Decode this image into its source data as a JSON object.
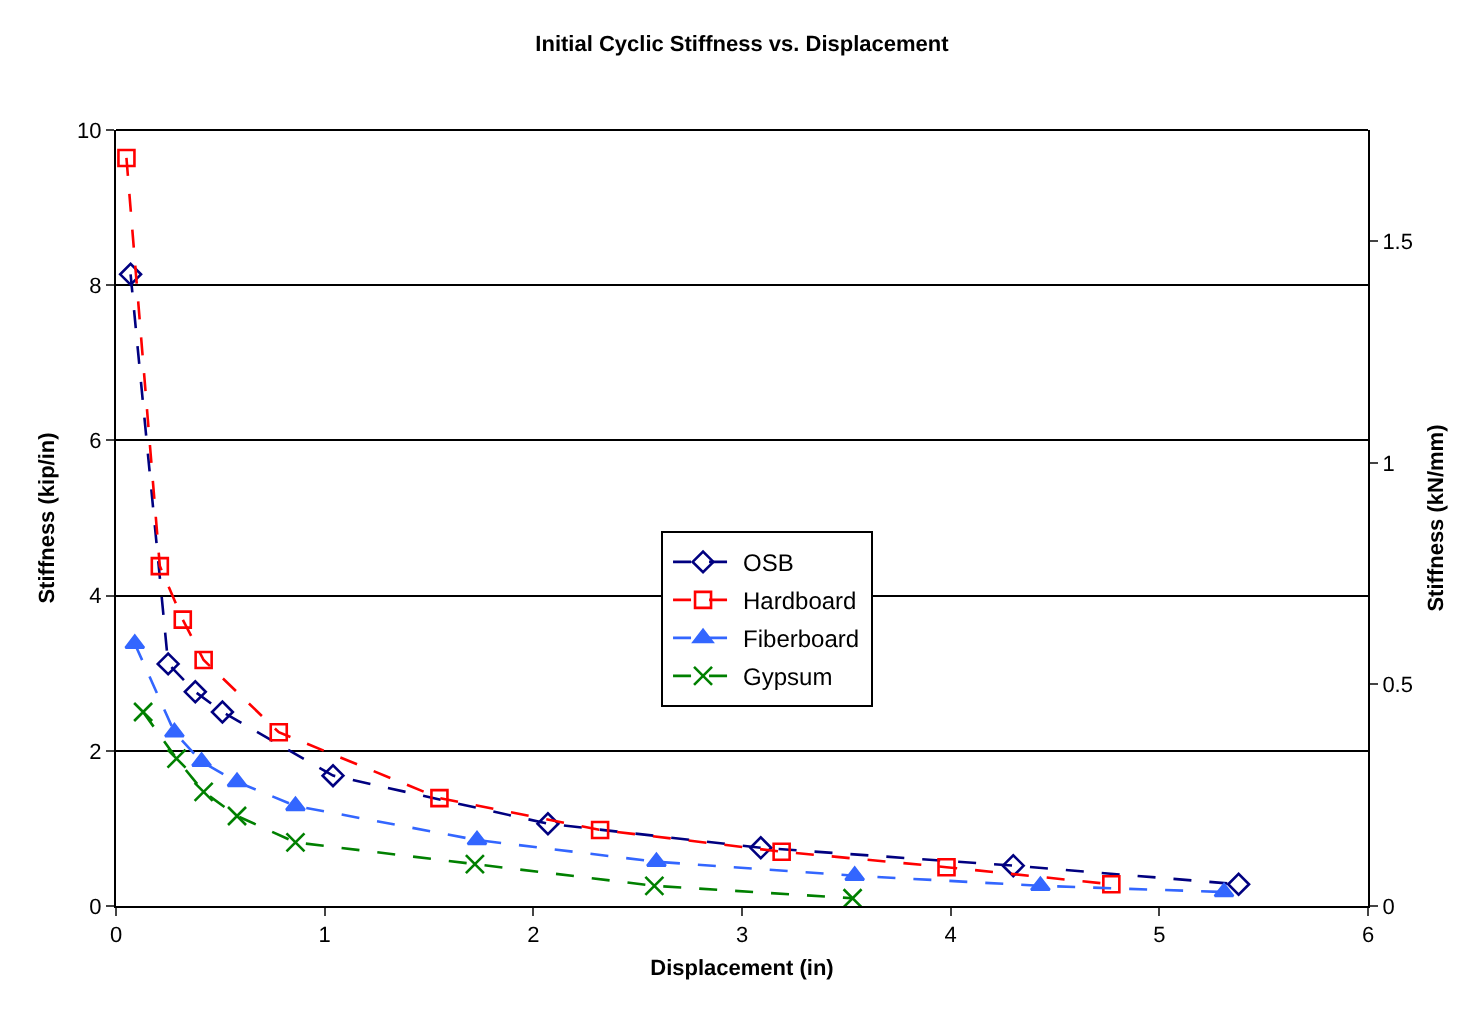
{
  "chart_data": {
    "type": "line",
    "title": "Initial Cyclic Stiffness vs. Displacement",
    "xlabel": "Displacement (in)",
    "ylabel": "Stiffness (kip/in)",
    "y2label": "Stiffness (kN/mm)",
    "xlim": [
      0,
      6
    ],
    "xticks": [
      0,
      1,
      2,
      3,
      4,
      5,
      6
    ],
    "ylim": [
      0,
      10
    ],
    "yticks": [
      0,
      2,
      4,
      6,
      8,
      10
    ],
    "y2lim": [
      0,
      1.7513
    ],
    "y2ticks": [
      0,
      0.5,
      1,
      1.5
    ],
    "grid": "y",
    "legend": "center",
    "line_style": "dashed",
    "series": [
      {
        "name": "OSB",
        "color": "#000080",
        "marker": "diamond",
        "x": [
          0.07,
          0.25,
          0.38,
          0.51,
          1.04,
          2.07,
          3.09,
          4.3,
          5.38
        ],
        "values": [
          8.14,
          3.12,
          2.76,
          2.5,
          1.68,
          1.06,
          0.75,
          0.52,
          0.28
        ]
      },
      {
        "name": "Hardboard",
        "color": "#ff0000",
        "marker": "square",
        "x": [
          0.05,
          0.21,
          0.32,
          0.42,
          0.78,
          1.55,
          2.32,
          3.19,
          3.98,
          4.77
        ],
        "values": [
          9.64,
          4.38,
          3.69,
          3.17,
          2.24,
          1.39,
          0.98,
          0.7,
          0.5,
          0.28
        ]
      },
      {
        "name": "Fiberboard",
        "color": "#3366ff",
        "marker": "triangle",
        "x": [
          0.09,
          0.28,
          0.41,
          0.58,
          0.86,
          1.73,
          2.59,
          3.54,
          4.43,
          5.31
        ],
        "values": [
          3.38,
          2.24,
          1.86,
          1.6,
          1.29,
          0.85,
          0.57,
          0.39,
          0.26,
          0.18
        ]
      },
      {
        "name": "Gypsum",
        "color": "#008000",
        "marker": "cross",
        "x": [
          0.13,
          0.29,
          0.42,
          0.58,
          0.86,
          1.72,
          2.58,
          3.53
        ],
        "values": [
          2.5,
          1.9,
          1.47,
          1.16,
          0.82,
          0.54,
          0.26,
          0.1
        ]
      }
    ]
  }
}
